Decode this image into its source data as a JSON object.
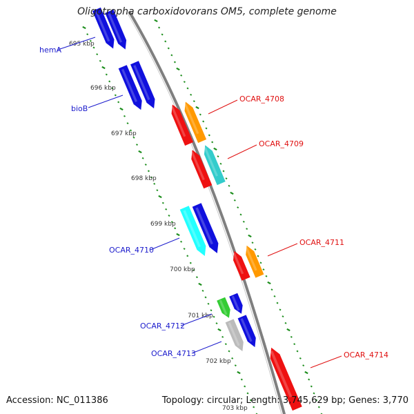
{
  "title": "Oligotropha carboxidovorans OM5, complete genome",
  "footer": {
    "accession": "Accession: NC_011386",
    "summary": "Topology: circular; Length: 3,745,629 bp; Genes: 3,770"
  },
  "colors": {
    "backbone": "#7f7f7f",
    "tick_dots": "#1f8f1f",
    "forward_label": "#1a1acc",
    "reverse_label": "#e01010"
  },
  "ticks": [
    {
      "label": "695 kbp"
    },
    {
      "label": "696 kbp"
    },
    {
      "label": "697 kbp"
    },
    {
      "label": "698 kbp"
    },
    {
      "label": "699 kbp"
    },
    {
      "label": "700 kbp"
    },
    {
      "label": "701 kbp"
    },
    {
      "label": "702 kbp"
    },
    {
      "label": "703 kbp"
    }
  ],
  "genes": [
    {
      "id": "top1",
      "label": "",
      "strand": "forward",
      "color": "#1010dd"
    },
    {
      "id": "top2",
      "label": "",
      "strand": "forward",
      "color": "#1010dd"
    },
    {
      "id": "hemA_lbl",
      "label": "hemA",
      "strand": "forward",
      "color": "#1010dd"
    },
    {
      "id": "bioB1",
      "label": "",
      "strand": "forward",
      "color": "#1010dd"
    },
    {
      "id": "bioB2",
      "label": "",
      "strand": "forward",
      "color": "#1010dd"
    },
    {
      "id": "bioB_lbl",
      "label": "bioB",
      "strand": "forward",
      "color": "#1010dd"
    },
    {
      "id": "r4708a",
      "label": "",
      "strand": "reverse",
      "color": "#ee1111"
    },
    {
      "id": "r4708b",
      "label": "OCAR_4708",
      "strand": "reverse",
      "color": "#ff9900"
    },
    {
      "id": "r4709a",
      "label": "",
      "strand": "reverse",
      "color": "#ee1111"
    },
    {
      "id": "r4709b",
      "label": "OCAR_4709",
      "strand": "reverse",
      "color": "#33cccc"
    },
    {
      "id": "f4710a",
      "label": "OCAR_4710",
      "strand": "forward",
      "color": "#22ffff"
    },
    {
      "id": "f4710b",
      "label": "",
      "strand": "forward",
      "color": "#1010dd"
    },
    {
      "id": "r4711a",
      "label": "",
      "strand": "reverse",
      "color": "#ee1111"
    },
    {
      "id": "r4711b",
      "label": "OCAR_4711",
      "strand": "reverse",
      "color": "#ff9900"
    },
    {
      "id": "f4712a",
      "label": "OCAR_4712",
      "strand": "forward",
      "color": "#33cc33"
    },
    {
      "id": "f4712b",
      "label": "",
      "strand": "forward",
      "color": "#1010dd"
    },
    {
      "id": "f4713a",
      "label": "OCAR_4713",
      "strand": "forward",
      "color": "#bbbbbb"
    },
    {
      "id": "f4713b",
      "label": "",
      "strand": "forward",
      "color": "#1010dd"
    },
    {
      "id": "r4714",
      "label": "OCAR_4714",
      "strand": "reverse",
      "color": "#ee1111"
    }
  ]
}
